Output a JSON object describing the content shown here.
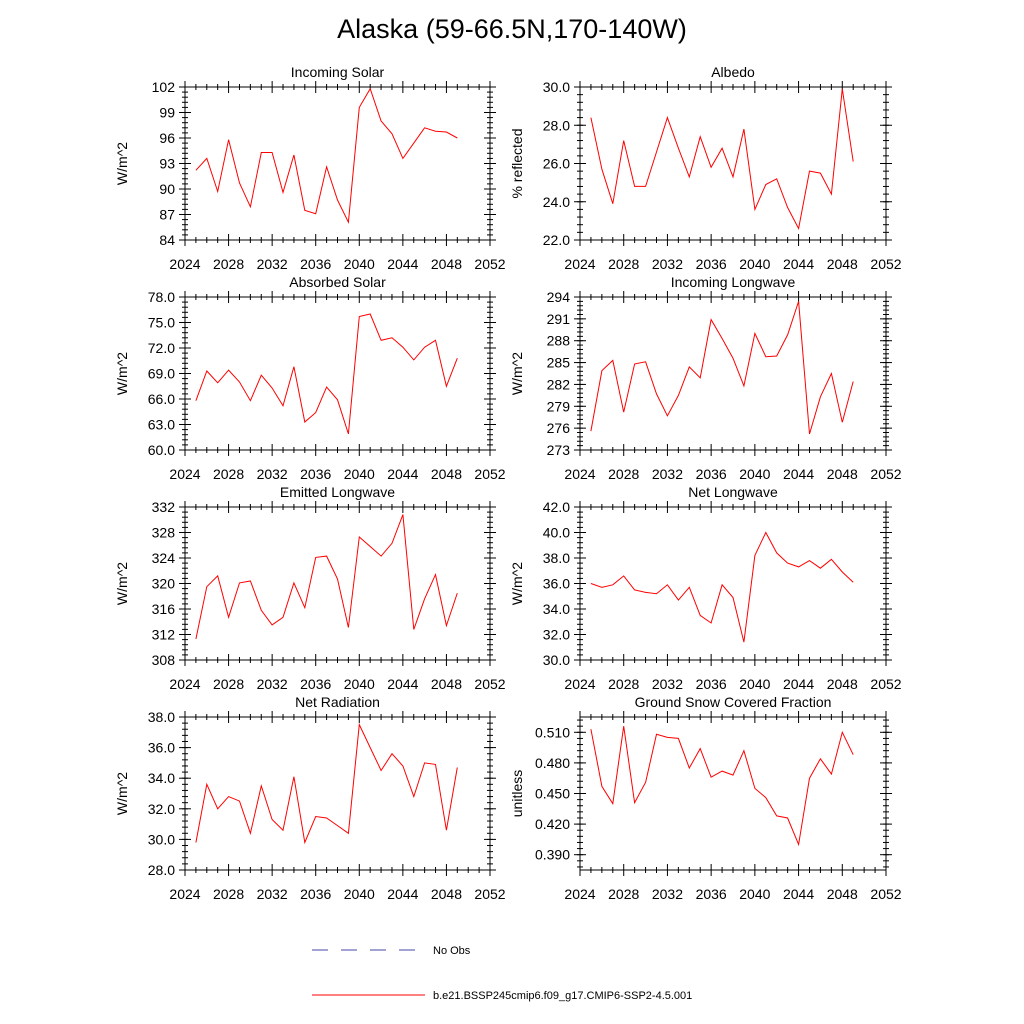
{
  "figure": {
    "title": "Alaska (59-66.5N,170-140W)",
    "legend": [
      {
        "label": "No Obs",
        "color": "#4444aa",
        "style": "dashed"
      },
      {
        "label": "b.e21.BSSP245cmip6.f09_g17.CMIP6-SSP2-4.5.001",
        "color": "#ff0000",
        "style": "solid"
      }
    ]
  },
  "chart_data": [
    {
      "type": "line",
      "title": "Incoming Solar",
      "ylabel": "W/m^2",
      "xlim": [
        2024,
        2052
      ],
      "xticks": [
        2024,
        2028,
        2032,
        2036,
        2040,
        2044,
        2048,
        2052
      ],
      "ylim": [
        84,
        102
      ],
      "yticks": [
        "84",
        "87",
        "90",
        "93",
        "96",
        "99",
        "102"
      ],
      "grid": false,
      "series": [
        {
          "color": "#ff0000",
          "x": [
            2025,
            2026,
            2027,
            2028,
            2029,
            2030,
            2031,
            2032,
            2033,
            2034,
            2035,
            2036,
            2037,
            2038,
            2039,
            2040,
            2041,
            2042,
            2043,
            2044,
            2045,
            2046,
            2047,
            2048,
            2049
          ],
          "y": [
            92.2,
            93.6,
            89.7,
            95.8,
            90.7,
            87.9,
            94.3,
            94.3,
            89.6,
            94.0,
            87.5,
            87.1,
            92.6,
            88.7,
            86.1,
            99.6,
            101.8,
            98.0,
            96.5,
            93.6,
            95.4,
            97.2,
            96.8,
            96.7,
            96.0
          ]
        }
      ]
    },
    {
      "type": "line",
      "title": "Albedo",
      "ylabel": "% reflected",
      "xlim": [
        2024,
        2052
      ],
      "xticks": [
        2024,
        2028,
        2032,
        2036,
        2040,
        2044,
        2048,
        2052
      ],
      "ylim": [
        22,
        30
      ],
      "yticks": [
        "22.0",
        "24.0",
        "26.0",
        "28.0",
        "30.0"
      ],
      "grid": false,
      "series": [
        {
          "color": "#ff0000",
          "x": [
            2025,
            2026,
            2027,
            2028,
            2029,
            2030,
            2031,
            2032,
            2033,
            2034,
            2035,
            2036,
            2037,
            2038,
            2039,
            2040,
            2041,
            2042,
            2043,
            2044,
            2045,
            2046,
            2047,
            2048,
            2049
          ],
          "y": [
            28.4,
            25.7,
            23.9,
            27.2,
            24.8,
            24.8,
            26.6,
            28.4,
            26.8,
            25.3,
            27.4,
            25.8,
            26.8,
            25.3,
            27.8,
            23.6,
            24.9,
            25.2,
            23.7,
            22.6,
            25.6,
            25.5,
            24.4,
            29.9,
            26.1
          ]
        }
      ]
    },
    {
      "type": "line",
      "title": "Absorbed Solar",
      "ylabel": "W/m^2",
      "xlim": [
        2024,
        2052
      ],
      "xticks": [
        2024,
        2028,
        2032,
        2036,
        2040,
        2044,
        2048,
        2052
      ],
      "ylim": [
        60,
        78
      ],
      "yticks": [
        "60.0",
        "63.0",
        "66.0",
        "69.0",
        "72.0",
        "75.0",
        "78.0"
      ],
      "grid": false,
      "series": [
        {
          "color": "#ff0000",
          "x": [
            2025,
            2026,
            2027,
            2028,
            2029,
            2030,
            2031,
            2032,
            2033,
            2034,
            2035,
            2036,
            2037,
            2038,
            2039,
            2040,
            2041,
            2042,
            2043,
            2044,
            2045,
            2046,
            2047,
            2048,
            2049
          ],
          "y": [
            65.8,
            69.3,
            67.9,
            69.4,
            68.0,
            65.8,
            68.8,
            67.3,
            65.2,
            69.8,
            63.3,
            64.4,
            67.4,
            65.9,
            61.9,
            75.7,
            76.0,
            72.9,
            73.2,
            72.1,
            70.6,
            72.1,
            72.9,
            67.5,
            70.8
          ]
        }
      ]
    },
    {
      "type": "line",
      "title": "Incoming Longwave",
      "ylabel": "W/m^2",
      "xlim": [
        2024,
        2052
      ],
      "xticks": [
        2024,
        2028,
        2032,
        2036,
        2040,
        2044,
        2048,
        2052
      ],
      "ylim": [
        273,
        294
      ],
      "yticks": [
        "273",
        "276",
        "279",
        "282",
        "285",
        "288",
        "291",
        "294"
      ],
      "grid": false,
      "series": [
        {
          "color": "#ff0000",
          "x": [
            2025,
            2026,
            2027,
            2028,
            2029,
            2030,
            2031,
            2032,
            2033,
            2034,
            2035,
            2036,
            2037,
            2038,
            2039,
            2040,
            2041,
            2042,
            2043,
            2044,
            2045,
            2046,
            2047,
            2048,
            2049
          ],
          "y": [
            275.6,
            283.9,
            285.3,
            278.2,
            284.8,
            285.1,
            280.7,
            277.7,
            280.5,
            284.4,
            282.9,
            290.9,
            288.3,
            285.6,
            281.8,
            289.0,
            285.8,
            285.9,
            288.8,
            293.4,
            275.2,
            280.3,
            283.5,
            276.8,
            282.4
          ]
        }
      ]
    },
    {
      "type": "line",
      "title": "Emitted Longwave",
      "ylabel": "W/m^2",
      "xlim": [
        2024,
        2052
      ],
      "xticks": [
        2024,
        2028,
        2032,
        2036,
        2040,
        2044,
        2048,
        2052
      ],
      "ylim": [
        308,
        332
      ],
      "yticks": [
        "308",
        "312",
        "316",
        "320",
        "324",
        "328",
        "332"
      ],
      "grid": false,
      "series": [
        {
          "color": "#ff0000",
          "x": [
            2025,
            2026,
            2027,
            2028,
            2029,
            2030,
            2031,
            2032,
            2033,
            2034,
            2035,
            2036,
            2037,
            2038,
            2039,
            2040,
            2041,
            2042,
            2043,
            2044,
            2045,
            2046,
            2047,
            2048,
            2049
          ],
          "y": [
            311.3,
            319.5,
            321.2,
            314.7,
            320.1,
            320.4,
            315.8,
            313.5,
            314.7,
            320.1,
            316.2,
            324.1,
            324.3,
            320.7,
            313.1,
            327.3,
            325.8,
            324.3,
            326.3,
            330.8,
            312.8,
            317.6,
            321.4,
            313.4,
            318.5
          ]
        }
      ]
    },
    {
      "type": "line",
      "title": "Net Longwave",
      "ylabel": "W/m^2",
      "xlim": [
        2024,
        2052
      ],
      "xticks": [
        2024,
        2028,
        2032,
        2036,
        2040,
        2044,
        2048,
        2052
      ],
      "ylim": [
        30,
        42
      ],
      "yticks": [
        "30.0",
        "32.0",
        "34.0",
        "36.0",
        "38.0",
        "40.0",
        "42.0"
      ],
      "grid": false,
      "series": [
        {
          "color": "#ff0000",
          "x": [
            2025,
            2026,
            2027,
            2028,
            2029,
            2030,
            2031,
            2032,
            2033,
            2034,
            2035,
            2036,
            2037,
            2038,
            2039,
            2040,
            2041,
            2042,
            2043,
            2044,
            2045,
            2046,
            2047,
            2048,
            2049
          ],
          "y": [
            36.0,
            35.7,
            35.9,
            36.6,
            35.5,
            35.3,
            35.2,
            35.9,
            34.7,
            35.7,
            33.5,
            32.9,
            35.9,
            34.9,
            31.4,
            38.2,
            40.0,
            38.4,
            37.6,
            37.3,
            37.8,
            37.2,
            37.9,
            36.9,
            36.1
          ]
        }
      ]
    },
    {
      "type": "line",
      "title": "Net Radiation",
      "ylabel": "W/m^2",
      "xlim": [
        2024,
        2052
      ],
      "xticks": [
        2024,
        2028,
        2032,
        2036,
        2040,
        2044,
        2048,
        2052
      ],
      "ylim": [
        28,
        38
      ],
      "yticks": [
        "28.0",
        "30.0",
        "32.0",
        "34.0",
        "36.0",
        "38.0"
      ],
      "grid": false,
      "series": [
        {
          "color": "#ff0000",
          "x": [
            2025,
            2026,
            2027,
            2028,
            2029,
            2030,
            2031,
            2032,
            2033,
            2034,
            2035,
            2036,
            2037,
            2038,
            2039,
            2040,
            2041,
            2042,
            2043,
            2044,
            2045,
            2046,
            2047,
            2048,
            2049
          ],
          "y": [
            29.8,
            33.6,
            32.0,
            32.8,
            32.5,
            30.4,
            33.5,
            31.3,
            30.6,
            34.1,
            29.8,
            31.5,
            31.4,
            30.9,
            30.4,
            37.5,
            36.0,
            34.5,
            35.6,
            34.8,
            32.8,
            35.0,
            34.9,
            30.6,
            34.7
          ]
        }
      ]
    },
    {
      "type": "line",
      "title": "Ground Snow Covered Fraction",
      "ylabel": "unitless",
      "xlim": [
        2024,
        2052
      ],
      "xticks": [
        2024,
        2028,
        2032,
        2036,
        2040,
        2044,
        2048,
        2052
      ],
      "ylim": [
        0.375,
        0.525
      ],
      "yticks": [
        "0.390",
        "0.420",
        "0.450",
        "0.480",
        "0.510"
      ],
      "ytick_values": [
        0.39,
        0.42,
        0.45,
        0.48,
        0.51
      ],
      "grid": false,
      "series": [
        {
          "color": "#ff0000",
          "x": [
            2025,
            2026,
            2027,
            2028,
            2029,
            2030,
            2031,
            2032,
            2033,
            2034,
            2035,
            2036,
            2037,
            2038,
            2039,
            2040,
            2041,
            2042,
            2043,
            2044,
            2045,
            2046,
            2047,
            2048,
            2049
          ],
          "y": [
            0.513,
            0.457,
            0.44,
            0.516,
            0.441,
            0.461,
            0.508,
            0.505,
            0.504,
            0.475,
            0.494,
            0.466,
            0.472,
            0.468,
            0.492,
            0.455,
            0.446,
            0.428,
            0.426,
            0.4,
            0.465,
            0.484,
            0.469,
            0.51,
            0.488
          ]
        }
      ]
    }
  ]
}
